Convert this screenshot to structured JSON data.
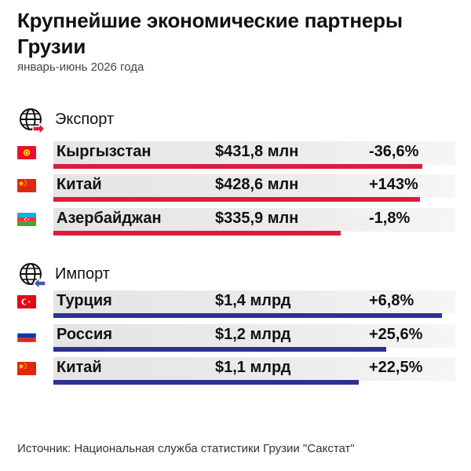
{
  "title": "Крупнейшие экономические партнеры Грузии",
  "subtitle": "январь-июнь 2026 года",
  "source": "Источник: Национальная служба статистики Грузии \"Сакстат\"",
  "colors": {
    "export_bar": "#d91d3f",
    "import_bar": "#2e3192",
    "arrow_export": "#d91d3f",
    "arrow_import": "#3a5bb0"
  },
  "chart_data": {
    "type": "bar",
    "sections": [
      {
        "name": "Экспорт",
        "icon": "globe-arrow-right-icon",
        "unit": "млн",
        "rows": [
          {
            "country": "Кыргызстан",
            "flag": "kyrgyzstan-flag-icon",
            "value_label": "$431,8 млн",
            "value": 431.8,
            "change_label": "-36,6%"
          },
          {
            "country": "Китай",
            "flag": "china-flag-icon",
            "value_label": "$428,6 млн",
            "value": 428.6,
            "change_label": "+143%"
          },
          {
            "country": "Азербайджан",
            "flag": "azerbaijan-flag-icon",
            "value_label": "$335,9 млн",
            "value": 335.9,
            "change_label": "-1,8%"
          }
        ]
      },
      {
        "name": "Импорт",
        "icon": "globe-arrow-left-icon",
        "unit": "млрд",
        "rows": [
          {
            "country": "Турция",
            "flag": "turkey-flag-icon",
            "value_label": "$1,4 млрд",
            "value": 1.4,
            "change_label": "+6,8%"
          },
          {
            "country": "Россия",
            "flag": "russia-flag-icon",
            "value_label": "$1,2 млрд",
            "value": 1.2,
            "change_label": "+25,6%"
          },
          {
            "country": "Китай",
            "flag": "china-flag-icon",
            "value_label": "$1,1 млрд",
            "value": 1.1,
            "change_label": "+22,5%"
          }
        ]
      }
    ]
  }
}
